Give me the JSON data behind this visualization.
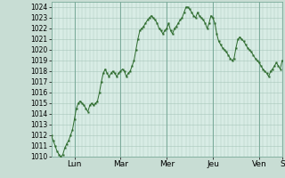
{
  "bg_color": "#c8ddd4",
  "plot_bg_color": "#d8ece5",
  "line_color": "#2d6b2d",
  "marker_color": "#2d6b2d",
  "ylim": [
    1010,
    1024.5
  ],
  "yticks": [
    1010,
    1011,
    1012,
    1013,
    1014,
    1015,
    1016,
    1017,
    1018,
    1019,
    1020,
    1021,
    1022,
    1023,
    1024
  ],
  "xtick_labels": [
    "Lun",
    "Mar",
    "Mer",
    "Jeu",
    "Ven",
    "S"
  ],
  "xtick_positions": [
    12,
    36,
    60,
    84,
    108,
    120
  ],
  "grid_color": "#a8c8ba",
  "day_line_color": "#7aaa99",
  "y_values": [
    1012.0,
    1011.5,
    1011.0,
    1010.5,
    1010.2,
    1010.0,
    1010.2,
    1010.8,
    1011.2,
    1011.5,
    1012.0,
    1012.5,
    1013.5,
    1014.5,
    1015.0,
    1015.2,
    1015.0,
    1014.8,
    1014.5,
    1014.2,
    1014.8,
    1015.0,
    1014.8,
    1015.0,
    1015.2,
    1016.0,
    1017.0,
    1017.8,
    1018.2,
    1017.8,
    1017.5,
    1017.8,
    1018.0,
    1017.8,
    1017.5,
    1017.8,
    1018.0,
    1018.2,
    1018.0,
    1017.5,
    1017.8,
    1018.0,
    1018.5,
    1019.0,
    1020.0,
    1021.0,
    1021.8,
    1022.0,
    1022.2,
    1022.5,
    1022.8,
    1023.0,
    1023.2,
    1023.0,
    1022.8,
    1022.5,
    1022.0,
    1021.8,
    1021.5,
    1021.8,
    1022.0,
    1022.5,
    1021.8,
    1021.5,
    1022.0,
    1022.2,
    1022.5,
    1022.8,
    1023.0,
    1023.5,
    1024.0,
    1024.0,
    1023.8,
    1023.5,
    1023.2,
    1023.0,
    1023.5,
    1023.2,
    1023.0,
    1022.8,
    1022.5,
    1022.0,
    1022.5,
    1023.2,
    1023.0,
    1022.5,
    1021.5,
    1020.8,
    1020.5,
    1020.2,
    1020.0,
    1019.8,
    1019.5,
    1019.2,
    1019.0,
    1019.2,
    1020.2,
    1021.0,
    1021.2,
    1021.0,
    1020.8,
    1020.5,
    1020.2,
    1020.0,
    1019.8,
    1019.5,
    1019.2,
    1019.0,
    1018.8,
    1018.5,
    1018.2,
    1018.0,
    1017.8,
    1017.5,
    1018.0,
    1018.2,
    1018.5,
    1018.8,
    1018.5,
    1018.2,
    1019.0
  ],
  "tick_fontsize": 5.5,
  "xlabel_fontsize": 6.5
}
